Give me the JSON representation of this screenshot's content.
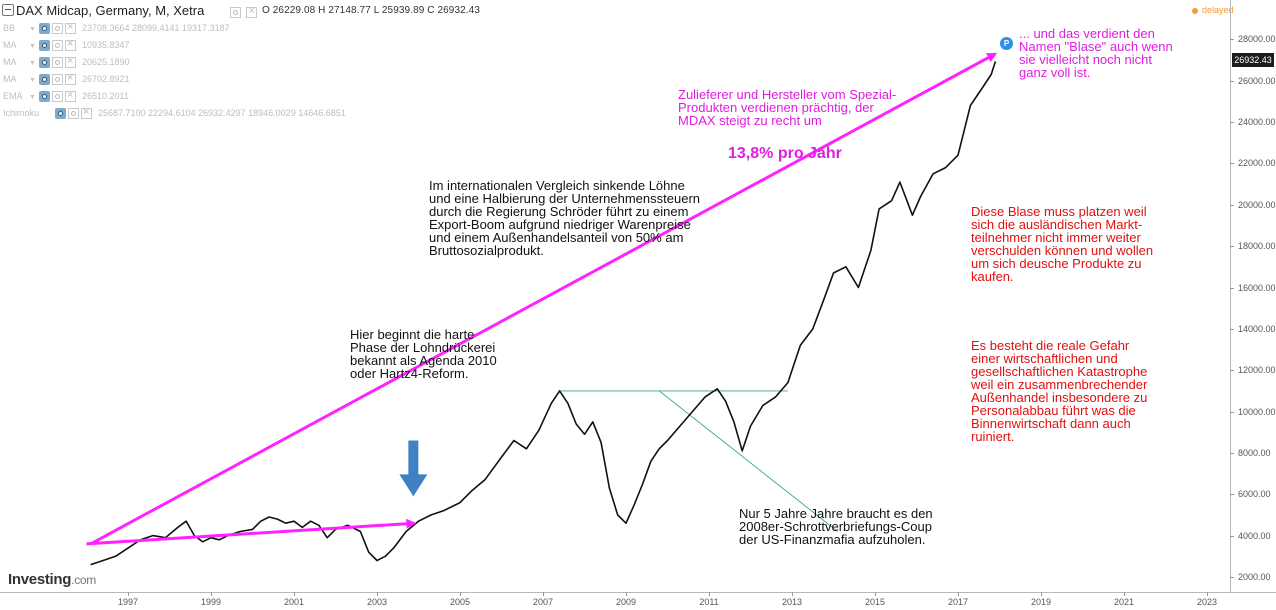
{
  "header": {
    "title": "DAX Midcap, Germany, M, Xetra",
    "ohlc": "O 26229.08  H 27148.77  L 25939.89  C 26932.43",
    "delayed": "delayed"
  },
  "indicators": [
    {
      "name": "BB",
      "values": "23708.3664  28099.4141  19317.3187"
    },
    {
      "name": "MA",
      "values": "10935.8347"
    },
    {
      "name": "MA",
      "values": "20625.1890"
    },
    {
      "name": "MA",
      "values": "26702.8921"
    },
    {
      "name": "EMA",
      "values": "26510.2011"
    },
    {
      "name": "Ichimoku",
      "values": "25687.7100  22294.6104  26932.4297  18946.0029  14646.6851"
    }
  ],
  "logo": {
    "brand": "Investing",
    "suffix": ".com"
  },
  "last_price_label": "26932.43",
  "marker_label": "P",
  "annotations": {
    "agenda": "Hier beginnt die harte\nPhase der Lohndrückerei\nbekannt als Agenda 2010\noder Hartz4-Reform.",
    "schroeder": "Im internationalen Vergleich sinkende Löhne\nund eine Halbierung der Unternehmenssteuern\ndurch die Regierung Schröder führt zu einem\nExport-Boom aufgrund niedriger Warenpreise\nund einem Außenhandelsanteil von 50% am\nBruttosozialprodukt.",
    "zulieferer": "Zulieferer und Hersteller vom Spezial-\nProdukten verdienen prächtig, der\nMDAX steigt zu recht um",
    "rate": "13,8% pro Jahr",
    "blase_top": "... und das verdient den\nNamen \"Blase\" auch wenn\nsie vielleicht noch nicht\nganz voll ist.",
    "blase_platzen": "Diese Blase muss platzen weil\nsich die ausländischen Markt-\nteilnehmer nicht immer weiter\nverschulden können und wollen\num sich deusche Produkte zu\nkaufen.",
    "gefahr": "Es besteht die reale Gefahr\neiner wirtschaftlichen und\ngesellschaftlichen Katastrophe\nweil ein zusammenbrechender\nAußenhandel insbesondere zu\nPersonalabbau führt was die\nBinnenwirtschaft dann auch\nruiniert.",
    "finanzmafia": "Nur 5 Jahre Jahre braucht es den\n2008er-Schrottverbriefungs-Coup\nder US-Finanzmafia aufzuholen."
  },
  "colors": {
    "price_line": "#111111",
    "trend_arrow": "#ff22ff",
    "down_arrow": "#3f82c4",
    "recovery_lines": "#3aa88a",
    "axis_text": "#555555"
  },
  "chart_data": {
    "type": "line",
    "title": "DAX Midcap, Germany, M, Xetra",
    "xlabel": "",
    "ylabel": "",
    "x_ticks": [
      "1997",
      "1999",
      "2001",
      "2003",
      "2005",
      "2007",
      "2009",
      "2011",
      "2013",
      "2015",
      "2017",
      "2019",
      "2021",
      "2023"
    ],
    "y_ticks": [
      "2000.00",
      "4000.00",
      "6000.00",
      "8000.00",
      "10000.00",
      "12000.00",
      "14000.00",
      "16000.00",
      "18000.00",
      "20000.00",
      "22000.00",
      "24000.00",
      "26000.00",
      "28000.00"
    ],
    "xlim": [
      1996.0,
      2023.4
    ],
    "ylim": [
      1000,
      28700
    ],
    "series": [
      {
        "name": "DAX Midcap (monthly close)",
        "x": [
          1996.1,
          1996.4,
          1996.7,
          1997.0,
          1997.3,
          1997.6,
          1997.9,
          1998.2,
          1998.4,
          1998.6,
          1998.8,
          1999.0,
          1999.2,
          1999.4,
          1999.7,
          2000.0,
          2000.2,
          2000.4,
          2000.6,
          2000.8,
          2001.0,
          2001.2,
          2001.4,
          2001.6,
          2001.8,
          2002.0,
          2002.3,
          2002.6,
          2002.8,
          2003.0,
          2003.2,
          2003.4,
          2003.7,
          2004.0,
          2004.3,
          2004.6,
          2005.0,
          2005.3,
          2005.6,
          2006.0,
          2006.3,
          2006.6,
          2006.9,
          2007.2,
          2007.4,
          2007.6,
          2007.8,
          2008.0,
          2008.2,
          2008.4,
          2008.6,
          2008.8,
          2009.0,
          2009.2,
          2009.4,
          2009.6,
          2009.8,
          2010.0,
          2010.3,
          2010.6,
          2010.9,
          2011.2,
          2011.4,
          2011.6,
          2011.8,
          2012.0,
          2012.3,
          2012.6,
          2012.9,
          2013.2,
          2013.5,
          2013.8,
          2014.0,
          2014.3,
          2014.6,
          2014.9,
          2015.1,
          2015.4,
          2015.6,
          2015.9,
          2016.1,
          2016.4,
          2016.7,
          2017.0,
          2017.3,
          2017.6,
          2017.8,
          2017.9
        ],
        "values": [
          2600,
          2800,
          3000,
          3400,
          3800,
          4000,
          3900,
          4400,
          4700,
          4000,
          3700,
          3900,
          3800,
          4000,
          4200,
          4300,
          4700,
          4900,
          4800,
          4600,
          4700,
          4400,
          4700,
          4500,
          3900,
          4300,
          4500,
          4200,
          3200,
          2800,
          3000,
          3400,
          4200,
          4700,
          5000,
          5200,
          5600,
          6200,
          6700,
          7800,
          8600,
          8200,
          9100,
          10400,
          11000,
          10400,
          9400,
          8900,
          9500,
          8500,
          6300,
          5000,
          4600,
          5500,
          6500,
          7600,
          8200,
          8600,
          9300,
          10000,
          10700,
          11100,
          10500,
          9500,
          8100,
          9300,
          10300,
          10700,
          11400,
          13200,
          14000,
          15600,
          16700,
          17000,
          16000,
          17800,
          19800,
          20200,
          21100,
          19500,
          20400,
          21500,
          21800,
          22400,
          24800,
          25700,
          26300,
          26932
        ]
      }
    ],
    "annotations_lines": {
      "trend_upper": {
        "from": [
          1996.1,
          3600
        ],
        "to": [
          2017.9,
          27300
        ]
      },
      "trend_lower": {
        "from": [
          1996.0,
          3600
        ],
        "to": [
          2003.9,
          4600
        ]
      },
      "prior_high": {
        "from": [
          2007.4,
          11000
        ],
        "to": [
          2012.9,
          11000
        ]
      },
      "recovery": {
        "from": [
          2009.8,
          11000
        ],
        "to": [
          2014.1,
          4200
        ]
      }
    },
    "down_arrow_at": {
      "x": 2003.9,
      "y_top": 8600,
      "y_bottom": 5900
    }
  }
}
